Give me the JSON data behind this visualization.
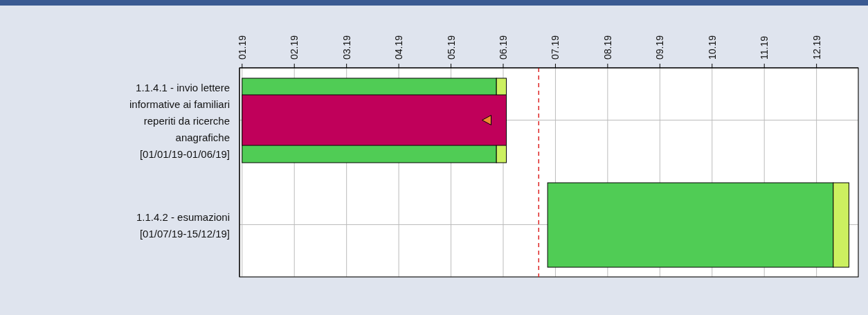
{
  "chart_data": {
    "type": "bar",
    "orientation": "horizontal",
    "categories": [
      "1.1.4.1 - invio lettere\ninformative ai familiari\nreperiti da ricerche\nanagrafiche\n[01/01/19-01/06/19]",
      "1.1.4.2 - esumazioni\n[01/07/19-15/12/19]"
    ],
    "series": [
      {
        "color": "#50cc55",
        "base": [
          1.19,
          7.04
        ],
        "values": [
          4.87,
          5.47
        ]
      },
      {
        "color": "#ccf060",
        "base": [
          6.06,
          12.51
        ],
        "values": [
          0.19,
          0.3
        ]
      },
      {
        "color": "#c0005a",
        "base": [
          1.19,
          null
        ],
        "values": [
          5.06,
          null
        ]
      }
    ],
    "xlim": [
      1.14,
      12.99
    ],
    "xticks": [
      {
        "value": 1.19,
        "label": "01.19"
      },
      {
        "value": 2.19,
        "label": "02.19"
      },
      {
        "value": 3.19,
        "label": "03.19"
      },
      {
        "value": 4.19,
        "label": "04.19"
      },
      {
        "value": 5.19,
        "label": "05.19"
      },
      {
        "value": 6.19,
        "label": "06.19"
      },
      {
        "value": 7.19,
        "label": "07.19"
      },
      {
        "value": 8.19,
        "label": "08.19"
      },
      {
        "value": 9.19,
        "label": "09.19"
      },
      {
        "value": 10.19,
        "label": "10.19"
      },
      {
        "value": 11.19,
        "label": "11.19"
      },
      {
        "value": 12.19,
        "label": "12.19"
      }
    ],
    "ref_lines": [
      {
        "axis": "x",
        "value": 6.87,
        "color": "#dd2222",
        "line_style": "dashed"
      }
    ],
    "grid": true,
    "legend": false
  }
}
